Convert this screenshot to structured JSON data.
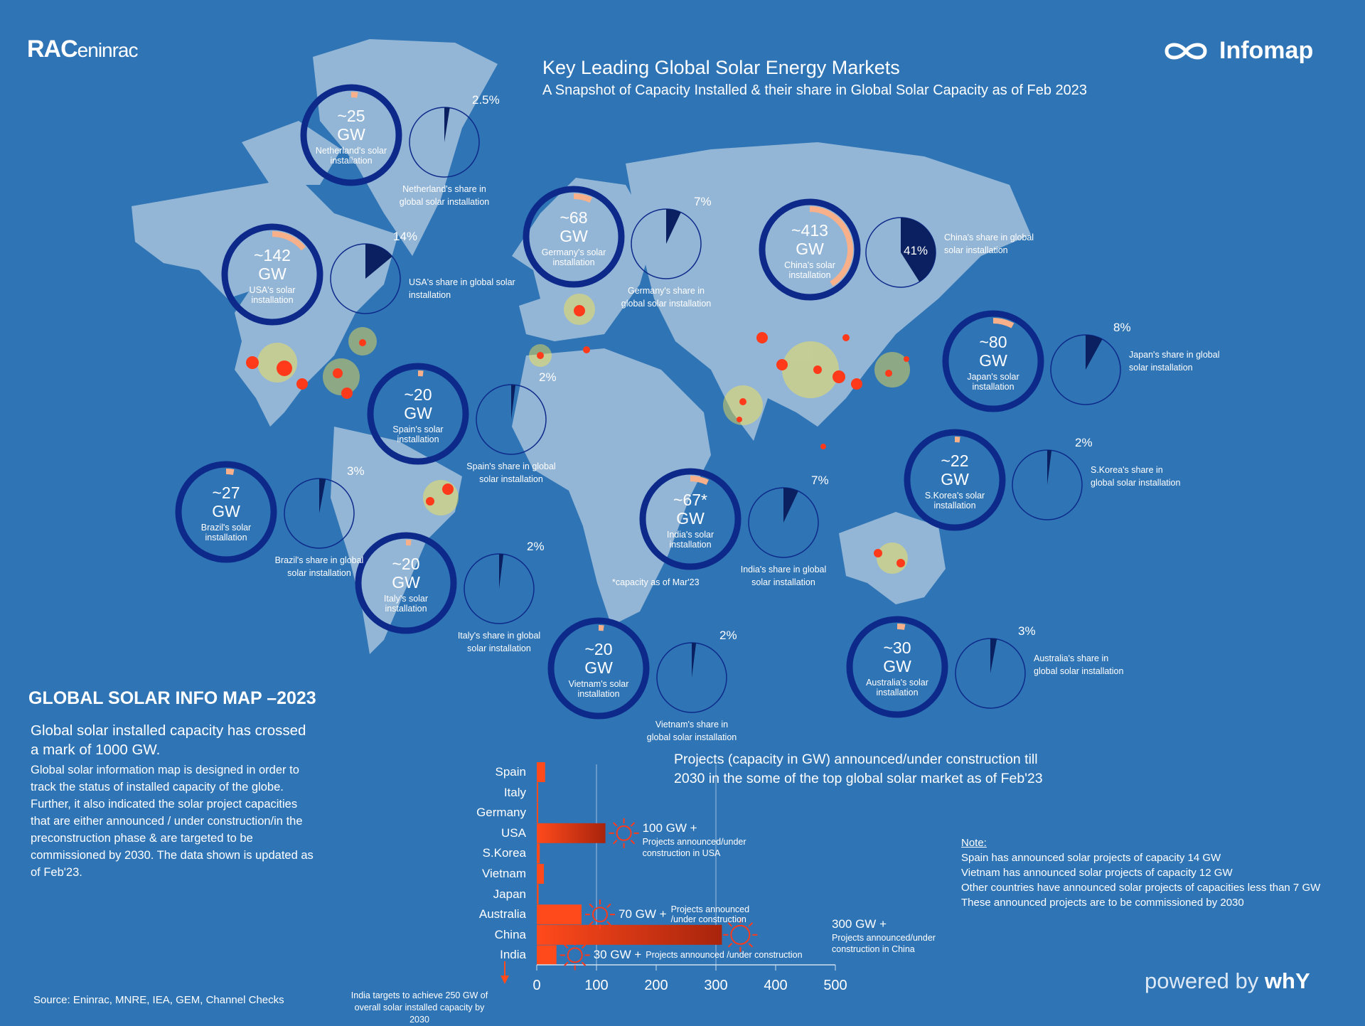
{
  "header": {
    "title": "Key Leading Global Solar Energy Markets",
    "subtitle": "A Snapshot of Capacity Installed & their share in Global Solar Capacity as of Feb 2023",
    "logo_left": "RAC",
    "logo_left_suffix": "eninrac",
    "logo_right": "Infomap"
  },
  "colors": {
    "background": "#2f74b5",
    "land": "#94b6d6",
    "ring": "#0d2a8a",
    "ring_arc": "#f7b08a",
    "pie_share": "#0a2060",
    "bar": "#ff4a1c",
    "hotspot": "#ff3a1a"
  },
  "markets": [
    {
      "country": "Netherland",
      "capacity": "~25",
      "unit": "GW",
      "capacity_label": "Netherland's solar installation",
      "share": "2.5%",
      "share_value": 2.5,
      "share_label": "Netherland's share in global solar installation"
    },
    {
      "country": "USA",
      "capacity": "~142",
      "unit": "GW",
      "capacity_label": "USA's solar installation",
      "share": "14%",
      "share_value": 14,
      "share_label": "USA's share in global solar installation"
    },
    {
      "country": "Germany",
      "capacity": "~68",
      "unit": "GW",
      "capacity_label": "Germany's solar installation",
      "share": "7%",
      "share_value": 7,
      "share_label": "Germany's share in global solar installation"
    },
    {
      "country": "China",
      "capacity": "~413",
      "unit": "GW",
      "capacity_label": "China's solar installation",
      "share": "41%",
      "share_value": 41,
      "share_label": "China's share in global solar installation"
    },
    {
      "country": "Japan",
      "capacity": "~80",
      "unit": "GW",
      "capacity_label": "Japan's solar installation",
      "share": "8%",
      "share_value": 8,
      "share_label": "Japan's share in global solar installation"
    },
    {
      "country": "Spain",
      "capacity": "~20",
      "unit": "GW",
      "capacity_label": "Spain's solar installation",
      "share": "2%",
      "share_value": 2,
      "share_label": "Spain's share in global solar installation"
    },
    {
      "country": "S.Korea",
      "capacity": "~22",
      "unit": "GW",
      "capacity_label": "S.Korea's solar installation",
      "share": "2%",
      "share_value": 2,
      "share_label": "S.Korea's share in global solar installation"
    },
    {
      "country": "Brazil",
      "capacity": "~27",
      "unit": "GW",
      "capacity_label": "Brazil's solar installation",
      "share": "3%",
      "share_value": 3,
      "share_label": "Brazil's share in global solar installation"
    },
    {
      "country": "India",
      "capacity": "~67*",
      "unit": "GW",
      "capacity_label": "India's solar installation",
      "share": "7%",
      "share_value": 7,
      "share_label": "India's share in global solar installation",
      "footnote": "*capacity as of Mar'23"
    },
    {
      "country": "Italy",
      "capacity": "~20",
      "unit": "GW",
      "capacity_label": "Italy's solar installation",
      "share": "2%",
      "share_value": 2,
      "share_label": "Italy's share in global solar installation"
    },
    {
      "country": "Vietnam",
      "capacity": "~20",
      "unit": "GW",
      "capacity_label": "Vietnam's solar installation",
      "share": "2%",
      "share_value": 2,
      "share_label": "Vietnam's share in global solar installation"
    },
    {
      "country": "Australia",
      "capacity": "~30",
      "unit": "GW",
      "capacity_label": "Australia's solar installation",
      "share": "3%",
      "share_value": 3,
      "share_label": "Australia's share in global solar installation"
    }
  ],
  "info": {
    "heading": "GLOBAL SOLAR INFO MAP –2023",
    "lead": "Global solar installed capacity has crossed a mark of 1000 GW.",
    "body": "Global solar information map is designed in order to track the status of installed capacity of the globe. Further, it also indicated the solar project capacities that are either announced / under construction/in the preconstruction phase & are targeted to be commissioned by 2030. The data shown is updated as of Feb'23.",
    "source": "Source: Eninrac, MNRE, IEA, GEM, Channel Checks"
  },
  "notes": {
    "title": "Note:",
    "lines": [
      "Spain has announced solar projects of capacity 14 GW",
      "Vietnam has announced solar projects of capacity 12 GW",
      "Other countries have announced solar projects of capacities less than 7 GW",
      "These announced projects are to be commissioned by 2030"
    ]
  },
  "footer": {
    "powered": "powered by",
    "brand": "whY"
  },
  "chart_data": {
    "type": "bar",
    "orientation": "horizontal",
    "title": "Projects (capacity in GW) announced/under construction till 2030 in the some of the top global solar market as of Feb'23",
    "categories": [
      "Spain",
      "Italy",
      "Germany",
      "USA",
      "S.Korea",
      "Vietnam",
      "Japan",
      "Australia",
      "China",
      "India"
    ],
    "values": [
      14,
      1,
      2,
      115,
      5,
      12,
      3,
      75,
      310,
      33
    ],
    "xlim": [
      0,
      500
    ],
    "xticks": [
      "0",
      "100",
      "200",
      "300",
      "400",
      "500"
    ],
    "grid": "vertical lines at 100 and 300",
    "annotations": [
      {
        "category": "USA",
        "value": "100 GW +",
        "text": "Projects announced/under construction in USA"
      },
      {
        "category": "Australia",
        "value": "70 GW +",
        "text": "Projects announced /under construction"
      },
      {
        "category": "China",
        "value": "300 GW +",
        "text": "Projects announced/under construction in China"
      },
      {
        "category": "India",
        "value": "30 GW +",
        "text": "Projects announced /under construction"
      }
    ],
    "india_note": "India targets to achieve 250 GW of overall solar installed capacity by 2030"
  }
}
